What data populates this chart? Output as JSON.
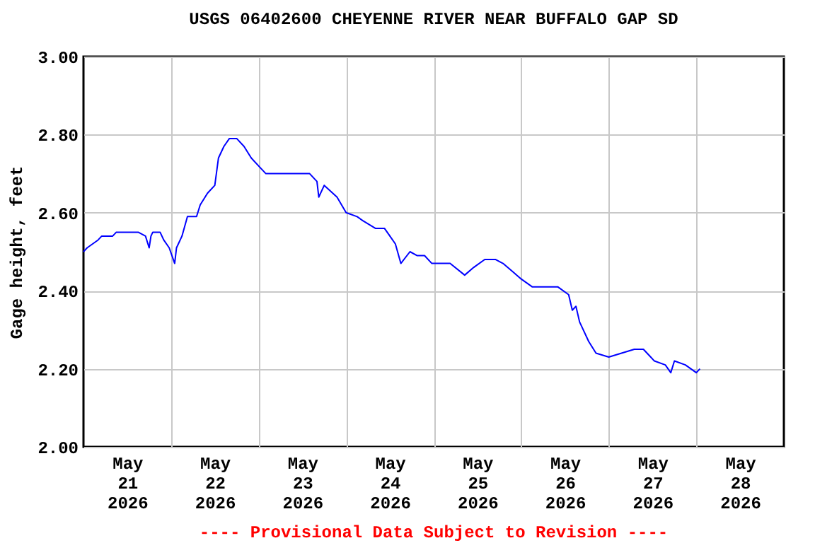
{
  "chart_data": {
    "type": "line",
    "title": "USGS 06402600 CHEYENNE RIVER NEAR BUFFALO GAP SD",
    "ylabel": "Gage height, feet",
    "annotations": [
      "---- Provisional Data Subject to Revision ----"
    ],
    "x": [
      "2026-05-21T00:00",
      "2026-05-21T01:00",
      "2026-05-21T04:00",
      "2026-05-21T05:00",
      "2026-05-21T08:00",
      "2026-05-21T09:00",
      "2026-05-21T13:00",
      "2026-05-21T15:00",
      "2026-05-21T17:00",
      "2026-05-21T18:00",
      "2026-05-21T18:30",
      "2026-05-21T19:00",
      "2026-05-21T21:00",
      "2026-05-21T22:00",
      "2026-05-21T23:30",
      "2026-05-22T01:00",
      "2026-05-22T01:30",
      "2026-05-22T03:00",
      "2026-05-22T04:30",
      "2026-05-22T07:00",
      "2026-05-22T08:00",
      "2026-05-22T10:00",
      "2026-05-22T12:00",
      "2026-05-22T13:00",
      "2026-05-22T14:30",
      "2026-05-22T16:00",
      "2026-05-22T18:00",
      "2026-05-22T20:00",
      "2026-05-22T22:00",
      "2026-05-23T00:00",
      "2026-05-23T02:00",
      "2026-05-23T05:00",
      "2026-05-23T14:00",
      "2026-05-23T16:00",
      "2026-05-23T16:30",
      "2026-05-23T18:00",
      "2026-05-23T21:30",
      "2026-05-24T00:00",
      "2026-05-24T03:00",
      "2026-05-24T04:30",
      "2026-05-24T08:00",
      "2026-05-24T10:30",
      "2026-05-24T12:00",
      "2026-05-24T13:30",
      "2026-05-24T15:00",
      "2026-05-24T17:30",
      "2026-05-24T19:30",
      "2026-05-24T21:30",
      "2026-05-24T23:30",
      "2026-05-25T04:30",
      "2026-05-25T08:30",
      "2026-05-25T11:00",
      "2026-05-25T14:00",
      "2026-05-25T17:00",
      "2026-05-25T19:00",
      "2026-05-25T21:30",
      "2026-05-26T00:00",
      "2026-05-26T03:00",
      "2026-05-26T06:30",
      "2026-05-26T10:00",
      "2026-05-26T13:00",
      "2026-05-26T14:00",
      "2026-05-26T15:00",
      "2026-05-26T16:00",
      "2026-05-26T16:30",
      "2026-05-26T18:30",
      "2026-05-26T20:30",
      "2026-05-27T00:00",
      "2026-05-27T03:30",
      "2026-05-27T07:00",
      "2026-05-27T09:30",
      "2026-05-27T11:30",
      "2026-05-27T12:30",
      "2026-05-27T15:30",
      "2026-05-27T17:00",
      "2026-05-27T18:00",
      "2026-05-27T21:00",
      "2026-05-27T22:30",
      "2026-05-28T00:00",
      "2026-05-28T01:00"
    ],
    "series": [
      {
        "color": "#0000ff",
        "values": [
          2.5,
          2.51,
          2.53,
          2.54,
          2.54,
          2.55,
          2.55,
          2.55,
          2.54,
          2.51,
          2.54,
          2.55,
          2.55,
          2.53,
          2.51,
          2.47,
          2.51,
          2.54,
          2.59,
          2.59,
          2.62,
          2.65,
          2.67,
          2.74,
          2.77,
          2.79,
          2.79,
          2.77,
          2.74,
          2.72,
          2.7,
          2.7,
          2.7,
          2.68,
          2.64,
          2.67,
          2.64,
          2.6,
          2.59,
          2.58,
          2.56,
          2.56,
          2.54,
          2.52,
          2.47,
          2.5,
          2.49,
          2.49,
          2.47,
          2.47,
          2.44,
          2.46,
          2.48,
          2.48,
          2.47,
          2.45,
          2.43,
          2.41,
          2.41,
          2.41,
          2.39,
          2.35,
          2.36,
          2.32,
          2.31,
          2.27,
          2.24,
          2.23,
          2.24,
          2.25,
          2.25,
          2.23,
          2.22,
          2.21,
          2.19,
          2.22,
          2.21,
          2.2,
          2.19,
          2.2
        ]
      }
    ],
    "xlim": [
      "2026-05-21T00:00",
      "2026-05-29T00:00"
    ],
    "xticks": [
      {
        "value": "2026-05-21T12:00",
        "label": "May 21 2026"
      },
      {
        "value": "2026-05-22T00:00",
        "label": null
      },
      {
        "value": "2026-05-22T12:00",
        "label": "May 22 2026"
      },
      {
        "value": "2026-05-23T00:00",
        "label": null
      },
      {
        "value": "2026-05-23T12:00",
        "label": "May 23 2026"
      },
      {
        "value": "2026-05-24T00:00",
        "label": null
      },
      {
        "value": "2026-05-24T12:00",
        "label": "May 24 2026"
      },
      {
        "value": "2026-05-25T00:00",
        "label": null
      },
      {
        "value": "2026-05-25T12:00",
        "label": "May 25 2026"
      },
      {
        "value": "2026-05-26T00:00",
        "label": null
      },
      {
        "value": "2026-05-26T12:00",
        "label": "May 26 2026"
      },
      {
        "value": "2026-05-27T00:00",
        "label": null
      },
      {
        "value": "2026-05-27T12:00",
        "label": "May 27 2026"
      },
      {
        "value": "2026-05-28T00:00",
        "label": null
      },
      {
        "value": "2026-05-28T12:00",
        "label": "May 28 2026"
      }
    ],
    "ylim": [
      2.0,
      3.0
    ],
    "yticks": [
      {
        "value": 2.0,
        "label": "2.00"
      },
      {
        "value": 2.2,
        "label": "2.20"
      },
      {
        "value": 2.4,
        "label": "2.40"
      },
      {
        "value": 2.6,
        "label": "2.60"
      },
      {
        "value": 2.8,
        "label": "2.80"
      },
      {
        "value": 3.0,
        "label": "3.00"
      }
    ],
    "grid": true,
    "marker": "none",
    "line_style": "solid"
  }
}
